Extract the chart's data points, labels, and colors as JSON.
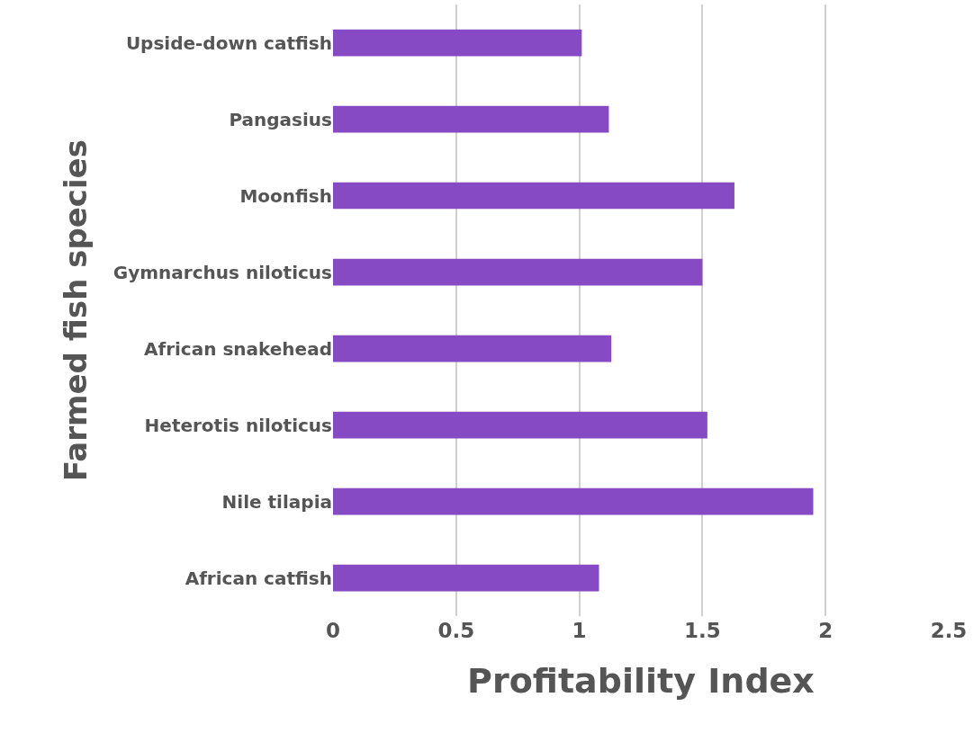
{
  "chart_data": {
    "type": "bar",
    "orientation": "horizontal",
    "xlabel": "Profitability Index",
    "ylabel": "Farmed fish species",
    "categories": [
      "Upside-down catfish",
      "Pangasius",
      "Moonfish",
      "Gymnarchus niloticus",
      "African snakehead",
      "Heterotis niloticus",
      "Nile tilapia",
      "African catfish"
    ],
    "values": [
      1.01,
      1.12,
      1.63,
      1.5,
      1.13,
      1.52,
      1.95,
      1.08
    ],
    "color": "#864bc4",
    "xlim": [
      0,
      2.5
    ],
    "xticks": [
      0,
      0.5,
      1,
      1.5,
      2,
      2.5
    ],
    "grid": "x"
  }
}
